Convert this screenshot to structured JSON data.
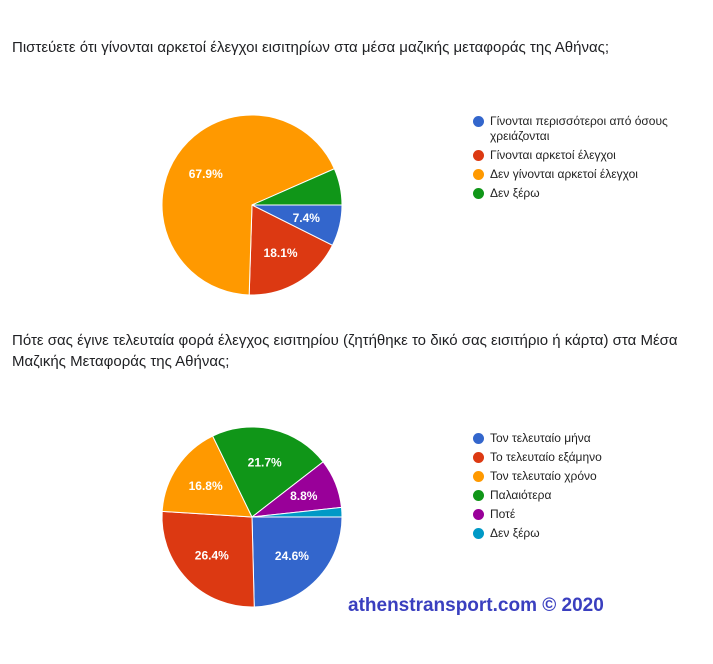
{
  "watermark": "athenstransport.com © 2020",
  "chart_data": [
    {
      "type": "pie",
      "title": "Πιστεύετε ότι γίνονται αρκετοί έλεγχοι εισιτηρίων στα μέσα μαζικής μεταφοράς της Αθήνας;",
      "legend_position": "right",
      "categories": [
        "Γίνονται περισσότεροι από όσους χρειάζονται",
        "Γίνονται αρκετοί έλεγχοι",
        "Δεν γίνονται αρκετοί έλεγχοι",
        "Δεν ξέρω"
      ],
      "values": [
        7.4,
        18.1,
        67.9,
        6.6
      ],
      "labels": [
        "7.4%",
        "18.1%",
        "67.9%",
        ""
      ],
      "colors": [
        "#3366cc",
        "#dc3912",
        "#ff9900",
        "#109618"
      ]
    },
    {
      "type": "pie",
      "title": "Πότε σας έγινε τελευταία φορά έλεγχος εισιτηρίου (ζητήθηκε το δικό σας εισιτήριο ή κάρτα) στα Μέσα Μαζικής Μεταφοράς της Αθήνας;",
      "legend_position": "right",
      "categories": [
        "Τον τελευταίο μήνα",
        "Το τελευταίο εξάμηνο",
        "Τον τελευταίο χρόνο",
        "Παλαιότερα",
        "Ποτέ",
        "Δεν ξέρω"
      ],
      "values": [
        24.6,
        26.4,
        16.8,
        21.7,
        8.8,
        1.7
      ],
      "labels": [
        "24.6%",
        "26.4%",
        "16.8%",
        "21.7%",
        "8.8%",
        ""
      ],
      "colors": [
        "#3366cc",
        "#dc3912",
        "#ff9900",
        "#109618",
        "#990099",
        "#0099c6"
      ]
    }
  ]
}
